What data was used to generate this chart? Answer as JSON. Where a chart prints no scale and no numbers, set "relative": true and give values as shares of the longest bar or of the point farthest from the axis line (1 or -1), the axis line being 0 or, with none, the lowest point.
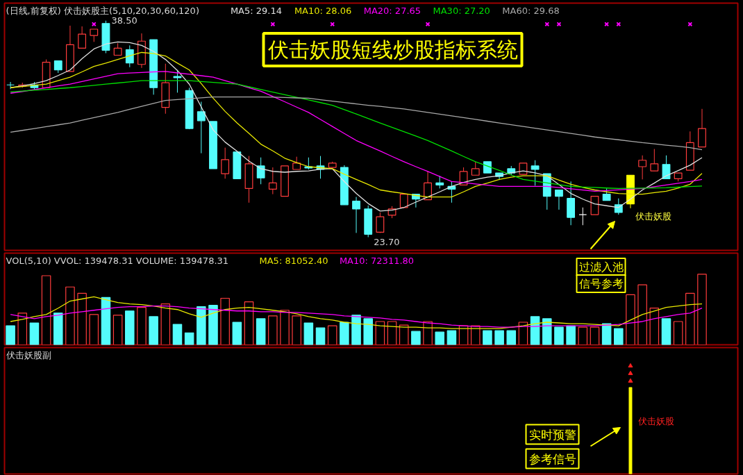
{
  "chart_data": [
    {
      "type": "candlestick",
      "title": "(日线,前复权) 伏击妖股主(5,10,20,30,60,120)",
      "tick_labels": false,
      "categories": [
        null,
        null,
        null,
        null,
        null,
        null,
        null,
        null,
        null,
        null,
        null,
        null,
        null,
        null,
        null,
        null,
        null,
        null,
        null,
        null,
        null,
        null,
        null,
        null,
        null,
        null,
        null,
        null,
        null,
        null,
        null,
        null,
        null,
        null,
        null,
        null,
        null,
        null,
        null,
        null,
        null,
        null,
        null,
        null,
        null,
        null,
        null,
        null,
        null,
        null,
        null,
        null,
        null,
        null,
        null,
        null,
        null,
        null,
        null
      ],
      "ylim": [
        22.8,
        39.7
      ],
      "ohlc": [
        [
          34.11,
          34.31,
          33.82,
          34.11
        ],
        [
          34.02,
          34.26,
          33.92,
          34.11
        ],
        [
          34.11,
          34.31,
          33.78,
          33.92
        ],
        [
          33.92,
          35.85,
          33.92,
          35.66
        ],
        [
          35.75,
          35.75,
          34.93,
          35.13
        ],
        [
          35.03,
          38.16,
          35.03,
          36.86
        ],
        [
          36.62,
          38.11,
          36.62,
          37.58
        ],
        [
          37.49,
          37.92,
          37.05,
          37.92
        ],
        [
          38.31,
          38.5,
          36.28,
          36.48
        ],
        [
          36.14,
          36.96,
          36.14,
          36.62
        ],
        [
          36.52,
          36.81,
          35.32,
          35.61
        ],
        [
          35.51,
          37.63,
          35.27,
          37.1
        ],
        [
          37.2,
          37.2,
          33.44,
          33.92
        ],
        [
          32.57,
          35.56,
          32.14,
          34.26
        ],
        [
          34.69,
          35.13,
          33.58,
          34.6
        ],
        [
          33.73,
          33.92,
          31.08,
          31.13
        ],
        [
          32.28,
          32.96,
          29.44,
          31.66
        ],
        [
          31.61,
          31.61,
          28.38,
          28.38
        ],
        [
          28.04,
          29.82,
          27.7,
          29.0
        ],
        [
          29.53,
          29.53,
          27.7,
          27.7
        ],
        [
          27.03,
          29.25,
          26.06,
          28.72
        ],
        [
          28.57,
          29.15,
          27.32,
          27.75
        ],
        [
          26.98,
          28.47,
          26.64,
          27.41
        ],
        [
          26.5,
          28.57,
          26.5,
          28.57
        ],
        [
          28.33,
          29.2,
          28.33,
          28.76
        ],
        [
          28.52,
          29.15,
          28.33,
          28.43
        ],
        [
          28.57,
          29.25,
          27.7,
          28.33
        ],
        [
          28.47,
          28.86,
          28.47,
          28.76
        ],
        [
          28.47,
          28.62,
          25.92,
          25.92
        ],
        [
          26.16,
          26.45,
          23.99,
          25.63
        ],
        [
          25.63,
          25.87,
          23.7,
          23.9
        ],
        [
          24.04,
          25.39,
          23.99,
          25.1
        ],
        [
          25.2,
          25.82,
          25.0,
          25.63
        ],
        [
          25.73,
          26.64,
          25.73,
          26.64
        ],
        [
          26.64,
          26.64,
          25.73,
          26.31
        ],
        [
          26.26,
          28.23,
          26.26,
          27.41
        ],
        [
          27.41,
          27.9,
          27.03,
          27.27
        ],
        [
          27.17,
          27.51,
          26.06,
          26.98
        ],
        [
          27.27,
          28.47,
          27.27,
          28.19
        ],
        [
          27.94,
          28.86,
          27.94,
          28.38
        ],
        [
          28.86,
          28.86,
          28.09,
          28.09
        ],
        [
          28.09,
          28.09,
          27.61,
          27.85
        ],
        [
          28.38,
          28.57,
          27.94,
          28.09
        ],
        [
          27.99,
          28.76,
          27.99,
          28.76
        ],
        [
          28.57,
          28.96,
          27.22,
          28.33
        ],
        [
          28.04,
          28.04,
          25.58,
          26.5
        ],
        [
          26.93,
          26.93,
          25.58,
          26.5
        ],
        [
          26.35,
          27.51,
          24.52,
          25.05
        ],
        [
          25.24,
          25.73,
          24.52,
          25.24
        ],
        [
          25.24,
          26.5,
          25.24,
          26.5
        ],
        [
          26.64,
          27.03,
          26.21,
          26.21
        ],
        [
          25.92,
          26.35,
          25.24,
          25.39
        ],
        [
          25.97,
          27.94,
          25.68,
          27.94
        ],
        [
          28.52,
          29.29,
          27.65,
          28.96
        ],
        [
          28.23,
          29.73,
          28.23,
          28.72
        ],
        [
          28.67,
          29.29,
          27.7,
          27.7
        ],
        [
          27.7,
          28.09,
          27.51,
          28.09
        ],
        [
          28.28,
          30.93,
          28.28,
          30.16
        ],
        [
          29.87,
          32.47,
          29.87,
          31.13
        ]
      ],
      "colors": [
        "#54fcfc",
        "#ff3c3c",
        "#54fcfc",
        "#ff3c3c",
        "#54fcfc",
        "#ff3c3c",
        "#ff3c3c",
        "#ff3c3c",
        "#54fcfc",
        "#ff3c3c",
        "#54fcfc",
        "#ff3c3c",
        "#54fcfc",
        "#ff3c3c",
        "#54fcfc",
        "#54fcfc",
        "#54fcfc",
        "#54fcfc",
        "#ff3c3c",
        "#54fcfc",
        "#ff3c3c",
        "#54fcfc",
        "#ff3c3c",
        "#ff3c3c",
        "#ff3c3c",
        "#54fcfc",
        "#54fcfc",
        "#ff3c3c",
        "#54fcfc",
        "#54fcfc",
        "#54fcfc",
        "#ff3c3c",
        "#ff3c3c",
        "#ff3c3c",
        "#54fcfc",
        "#ff3c3c",
        "#54fcfc",
        "#54fcfc",
        "#ff3c3c",
        "#ff3c3c",
        "#54fcfc",
        "#54fcfc",
        "#54fcfc",
        "#ff3c3c",
        "#54fcfc",
        "#54fcfc",
        "#54fcfc",
        "#54fcfc",
        "#ffffff",
        "#ff3c3c",
        "#54fcfc",
        "#54fcfc",
        "#ffff00",
        "#ff3c3c",
        "#ff3c3c",
        "#54fcfc",
        "#ff3c3c",
        "#ff3c3c",
        "#ff3c3c"
      ],
      "series": [
        {
          "type": "line",
          "name": "MA5: 29.14",
          "color": "#e0e0e0",
          "values": [
            33.92,
            34.05,
            34.2,
            34.4,
            34.75,
            35.13,
            35.9,
            36.57,
            36.9,
            37.05,
            37.0,
            36.81,
            36.4,
            35.85,
            35.1,
            34.16,
            32.6,
            31.03,
            30.2,
            29.58,
            28.9,
            28.38,
            28.2,
            28.14,
            28.2,
            28.23,
            28.35,
            28.38,
            27.5,
            26.69,
            26.0,
            25.49,
            25.55,
            25.73,
            26.1,
            26.45,
            26.8,
            27.17,
            27.45,
            27.65,
            27.8,
            27.9,
            28.1,
            28.23,
            28.1,
            27.9,
            27.3,
            26.69,
            26.3,
            25.97,
            25.85,
            25.73,
            26.3,
            26.93,
            27.4,
            27.9,
            28.25,
            28.62,
            29.14
          ]
        },
        {
          "type": "line",
          "name": "MA10: 28.06",
          "color": "#e8e800",
          "values": [
            33.92,
            34.0,
            34.08,
            34.16,
            34.4,
            34.64,
            35.0,
            35.37,
            35.6,
            35.85,
            36.1,
            36.33,
            36.25,
            36.09,
            35.6,
            35.13,
            34.2,
            33.2,
            32.3,
            31.51,
            30.8,
            30.06,
            29.6,
            29.1,
            28.8,
            28.52,
            28.45,
            28.38,
            28.0,
            27.65,
            27.3,
            26.93,
            26.8,
            26.69,
            26.55,
            26.45,
            26.45,
            26.45,
            26.8,
            27.17,
            27.4,
            27.65,
            27.8,
            27.9,
            27.9,
            27.9,
            27.6,
            27.32,
            27.1,
            26.93,
            26.8,
            26.69,
            26.65,
            26.64,
            26.75,
            26.84,
            27.05,
            27.32,
            28.06
          ]
        },
        {
          "type": "line",
          "name": "MA20: 27.65",
          "color": "#ff00ff",
          "values": [
            33.54,
            33.66,
            33.79,
            33.91,
            34.04,
            34.16,
            34.34,
            34.52,
            34.7,
            34.88,
            34.92,
            34.96,
            35.0,
            35.03,
            34.93,
            34.84,
            34.74,
            34.64,
            34.4,
            34.16,
            33.92,
            33.68,
            33.32,
            32.96,
            32.59,
            32.23,
            31.75,
            31.27,
            30.79,
            30.31,
            29.95,
            29.59,
            29.22,
            28.86,
            28.52,
            28.19,
            27.85,
            27.51,
            27.43,
            27.34,
            27.26,
            27.17,
            27.17,
            27.17,
            27.17,
            27.17,
            27.09,
            27.01,
            26.92,
            26.84,
            26.89,
            26.94,
            26.98,
            27.03,
            27.15,
            27.27,
            27.39,
            27.51,
            27.65
          ]
        },
        {
          "type": "line",
          "name": "MA30: 27.20",
          "color": "#00e000",
          "values": [
            33.63,
            33.69,
            33.75,
            33.8,
            33.86,
            33.92,
            34.0,
            34.08,
            34.16,
            34.24,
            34.32,
            34.4,
            34.4,
            34.4,
            34.4,
            34.4,
            34.34,
            34.28,
            34.22,
            34.16,
            33.98,
            33.8,
            33.62,
            33.44,
            33.26,
            33.08,
            32.9,
            32.72,
            32.42,
            32.12,
            31.81,
            31.51,
            31.21,
            30.91,
            30.61,
            30.31,
            29.95,
            29.59,
            29.22,
            28.86,
            28.56,
            28.26,
            27.95,
            27.65,
            27.53,
            27.41,
            27.29,
            27.17,
            27.13,
            27.1,
            27.06,
            27.03,
            27.04,
            27.05,
            27.07,
            27.08,
            27.12,
            27.16,
            27.2
          ]
        },
        {
          "type": "line",
          "name": "MA60: 29.68",
          "color": "#a8a8a8",
          "values": [
            30.88,
            31.0,
            31.13,
            31.26,
            31.38,
            31.51,
            31.69,
            31.87,
            32.05,
            32.23,
            32.44,
            32.64,
            32.85,
            33.05,
            33.11,
            33.17,
            33.23,
            33.29,
            33.29,
            33.29,
            33.29,
            33.29,
            33.27,
            33.25,
            33.22,
            33.2,
            33.1,
            33.0,
            32.91,
            32.81,
            32.72,
            32.64,
            32.55,
            32.47,
            32.35,
            32.23,
            32.11,
            31.99,
            31.87,
            31.75,
            31.63,
            31.51,
            31.39,
            31.27,
            31.15,
            31.03,
            30.91,
            30.79,
            30.67,
            30.55,
            30.45,
            30.36,
            30.26,
            30.16,
            30.08,
            29.99,
            29.91,
            29.82,
            29.68
          ]
        },
        {
          "type": "scatter",
          "marker": "cross",
          "color": "#ff00ff",
          "values": [
            null,
            null,
            null,
            null,
            null,
            null,
            null,
            38.26,
            null,
            null,
            null,
            null,
            null,
            null,
            null,
            null,
            null,
            null,
            null,
            null,
            null,
            null,
            38.26,
            null,
            null,
            null,
            null,
            38.26,
            null,
            null,
            null,
            null,
            null,
            null,
            null,
            38.26,
            null,
            null,
            null,
            null,
            null,
            null,
            null,
            null,
            null,
            38.26,
            38.26,
            null,
            null,
            null,
            38.26,
            38.26,
            null,
            null,
            null,
            null,
            null,
            38.26,
            null
          ]
        }
      ],
      "annotations": [
        "38.50",
        "23.70",
        "伏击妖股短线炒股指标系统",
        "伏击妖股"
      ]
    },
    {
      "type": "bar",
      "title": "VOL(5,10)  VVOL: 139478.31  VOLUME: 139478.31",
      "relative": true,
      "tick_labels": false,
      "categories": [
        null,
        null,
        null,
        null,
        null,
        null,
        null,
        null,
        null,
        null,
        null,
        null,
        null,
        null,
        null,
        null,
        null,
        null,
        null,
        null,
        null,
        null,
        null,
        null,
        null,
        null,
        null,
        null,
        null,
        null,
        null,
        null,
        null,
        null,
        null,
        null,
        null,
        null,
        null,
        null,
        null,
        null,
        null,
        null,
        null,
        null,
        null,
        null,
        null,
        null,
        null,
        null,
        null,
        null,
        null,
        null,
        null,
        null,
        null
      ],
      "values": [
        0.27,
        0.45,
        0.31,
        0.98,
        0.45,
        0.82,
        0.73,
        0.43,
        0.67,
        0.42,
        0.48,
        0.53,
        0.4,
        0.58,
        0.29,
        0.17,
        0.54,
        0.56,
        0.66,
        0.32,
        0.61,
        0.37,
        0.41,
        0.49,
        0.41,
        0.31,
        0.24,
        0.27,
        0.32,
        0.42,
        0.37,
        0.33,
        0.33,
        0.28,
        0.19,
        0.33,
        0.18,
        0.2,
        0.27,
        0.27,
        0.2,
        0.2,
        0.2,
        0.32,
        0.4,
        0.37,
        0.25,
        0.27,
        0.25,
        0.25,
        0.3,
        0.23,
        0.71,
        0.85,
        0.52,
        0.37,
        0.33,
        0.73,
        1
      ],
      "colors": [
        "#54fcfc",
        "#ff3c3c",
        "#54fcfc",
        "#ff3c3c",
        "#54fcfc",
        "#ff3c3c",
        "#ff3c3c",
        "#ff3c3c",
        "#54fcfc",
        "#ff3c3c",
        "#54fcfc",
        "#ff3c3c",
        "#54fcfc",
        "#ff3c3c",
        "#54fcfc",
        "#54fcfc",
        "#54fcfc",
        "#54fcfc",
        "#ff3c3c",
        "#54fcfc",
        "#ff3c3c",
        "#54fcfc",
        "#ff3c3c",
        "#ff3c3c",
        "#ff3c3c",
        "#54fcfc",
        "#54fcfc",
        "#ff3c3c",
        "#54fcfc",
        "#54fcfc",
        "#54fcfc",
        "#ff3c3c",
        "#ff3c3c",
        "#ff3c3c",
        "#54fcfc",
        "#ff3c3c",
        "#54fcfc",
        "#54fcfc",
        "#ff3c3c",
        "#ff3c3c",
        "#54fcfc",
        "#54fcfc",
        "#54fcfc",
        "#ff3c3c",
        "#54fcfc",
        "#54fcfc",
        "#54fcfc",
        "#54fcfc",
        "#ff3c3c",
        "#ff3c3c",
        "#54fcfc",
        "#54fcfc",
        "#ff3c3c",
        "#ff3c3c",
        "#ff3c3c",
        "#54fcfc",
        "#ff3c3c",
        "#ff3c3c",
        "#ff3c3c"
      ],
      "series": [
        {
          "type": "line",
          "name": "MA5: 81052.40",
          "color": "#e8e800",
          "values": [
            0.33,
            0.36,
            0.4,
            0.43,
            0.52,
            0.62,
            0.65,
            0.68,
            0.64,
            0.6,
            0.58,
            0.57,
            0.55,
            0.52,
            0.5,
            0.44,
            0.39,
            0.45,
            0.5,
            0.52,
            0.53,
            0.51,
            0.49,
            0.47,
            0.44,
            0.4,
            0.37,
            0.35,
            0.32,
            0.3,
            0.29,
            0.27,
            0.26,
            0.25,
            0.25,
            0.24,
            0.24,
            0.23,
            0.23,
            0.23,
            0.23,
            0.23,
            0.25,
            0.27,
            0.3,
            0.32,
            0.31,
            0.3,
            0.3,
            0.29,
            0.28,
            0.27,
            0.35,
            0.43,
            0.48,
            0.53,
            0.55,
            0.57,
            0.58
          ]
        },
        {
          "type": "line",
          "name": "MA10: 72311.80",
          "color": "#ff00ff",
          "values": [
            0.43,
            0.4,
            0.37,
            0.4,
            0.42,
            0.45,
            0.47,
            0.49,
            0.51,
            0.53,
            0.54,
            0.54,
            0.55,
            0.55,
            0.54,
            0.52,
            0.51,
            0.5,
            0.49,
            0.48,
            0.48,
            0.47,
            0.47,
            0.46,
            0.46,
            0.45,
            0.44,
            0.43,
            0.41,
            0.4,
            0.39,
            0.38,
            0.36,
            0.35,
            0.33,
            0.31,
            0.3,
            0.28,
            0.27,
            0.26,
            0.26,
            0.25,
            0.25,
            0.26,
            0.26,
            0.27,
            0.27,
            0.27,
            0.27,
            0.27,
            0.28,
            0.29,
            0.31,
            0.33,
            0.37,
            0.4,
            0.43,
            0.45,
            0.52
          ]
        }
      ],
      "annotations": [
        "过滤入池",
        "信号参考"
      ]
    },
    {
      "type": "bar",
      "title": "伏击妖股副",
      "relative": true,
      "tick_labels": false,
      "categories": [
        null,
        null,
        null,
        null,
        null,
        null,
        null,
        null,
        null,
        null,
        null,
        null,
        null,
        null,
        null,
        null,
        null,
        null,
        null,
        null,
        null,
        null,
        null,
        null,
        null,
        null,
        null,
        null,
        null,
        null,
        null,
        null,
        null,
        null,
        null,
        null,
        null,
        null,
        null,
        null,
        null,
        null,
        null,
        null,
        null,
        null,
        null,
        null,
        null,
        null,
        null,
        null,
        null,
        null,
        null,
        null,
        null,
        null,
        null
      ],
      "values": [
        null,
        null,
        null,
        null,
        null,
        null,
        null,
        null,
        null,
        null,
        null,
        null,
        null,
        null,
        null,
        null,
        null,
        null,
        null,
        null,
        null,
        null,
        null,
        null,
        null,
        null,
        null,
        null,
        null,
        null,
        null,
        null,
        null,
        null,
        null,
        null,
        null,
        null,
        null,
        null,
        null,
        null,
        null,
        null,
        null,
        null,
        null,
        null,
        null,
        null,
        null,
        null,
        0.8,
        null,
        null,
        null,
        null,
        null,
        null
      ],
      "color": "#ffff00",
      "marker": "triangle",
      "series": [
        {
          "type": "scatter",
          "color": "#ff2020",
          "values": [
            null,
            null,
            null,
            null,
            null,
            null,
            null,
            null,
            null,
            null,
            null,
            null,
            null,
            null,
            null,
            null,
            null,
            null,
            null,
            null,
            null,
            null,
            null,
            null,
            null,
            null,
            null,
            null,
            null,
            null,
            null,
            null,
            null,
            null,
            null,
            null,
            null,
            null,
            null,
            null,
            null,
            null,
            null,
            null,
            null,
            null,
            null,
            null,
            null,
            null,
            null,
            null,
            1.0,
            null,
            null,
            null,
            null,
            null,
            null
          ]
        },
        {
          "type": "scatter",
          "color": "#ff2020",
          "values": [
            null,
            null,
            null,
            null,
            null,
            null,
            null,
            null,
            null,
            null,
            null,
            null,
            null,
            null,
            null,
            null,
            null,
            null,
            null,
            null,
            null,
            null,
            null,
            null,
            null,
            null,
            null,
            null,
            null,
            null,
            null,
            null,
            null,
            null,
            null,
            null,
            null,
            null,
            null,
            null,
            null,
            null,
            null,
            null,
            null,
            null,
            null,
            null,
            null,
            null,
            null,
            null,
            0.93,
            null,
            null,
            null,
            null,
            null,
            null
          ]
        },
        {
          "type": "scatter",
          "color": "#ff2020",
          "values": [
            null,
            null,
            null,
            null,
            null,
            null,
            null,
            null,
            null,
            null,
            null,
            null,
            null,
            null,
            null,
            null,
            null,
            null,
            null,
            null,
            null,
            null,
            null,
            null,
            null,
            null,
            null,
            null,
            null,
            null,
            null,
            null,
            null,
            null,
            null,
            null,
            null,
            null,
            null,
            null,
            null,
            null,
            null,
            null,
            null,
            null,
            null,
            null,
            null,
            null,
            null,
            null,
            0.86,
            null,
            null,
            null,
            null,
            null,
            null
          ]
        }
      ],
      "annotations": [
        "伏击妖股",
        "实时预警",
        "参考信号"
      ]
    }
  ]
}
